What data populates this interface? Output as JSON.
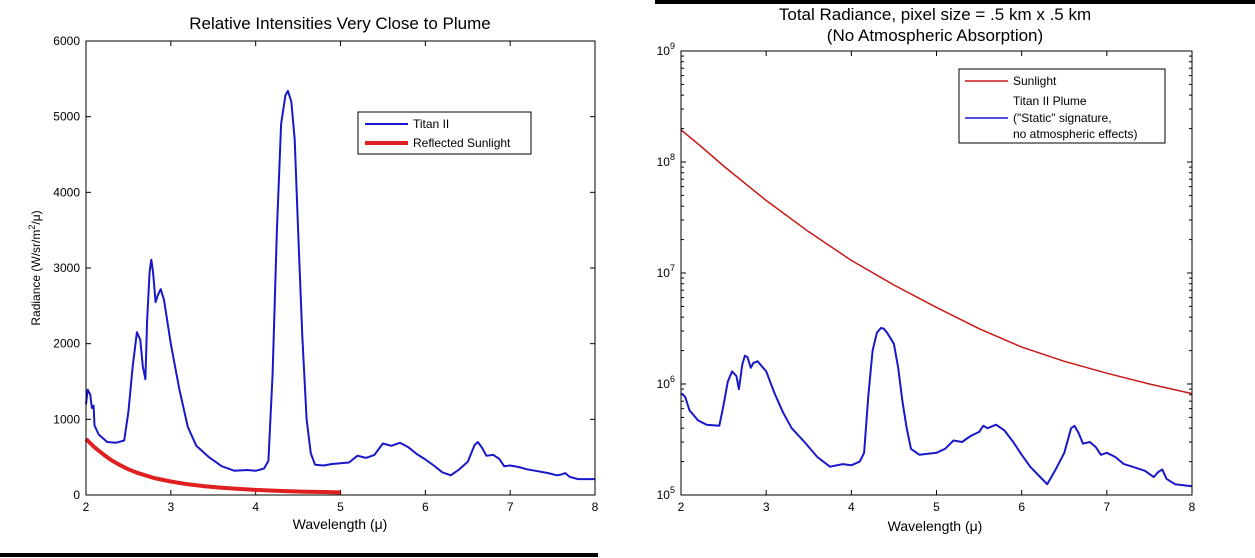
{
  "chart_data": [
    {
      "type": "line",
      "title": "Relative Intensities Very Close to Plume",
      "xlabel": "Wavelength (μ)",
      "ylabel_parts": [
        "Radiance (W/sr/m",
        "2",
        "/μ)"
      ],
      "xlim": [
        2,
        8
      ],
      "ylim": [
        0,
        6000
      ],
      "yscale": "linear",
      "xticks": [
        2,
        3,
        4,
        5,
        6,
        7,
        8
      ],
      "yticks": [
        0,
        1000,
        2000,
        3000,
        4000,
        5000,
        6000
      ],
      "ytick_labels": [
        "0",
        "1000",
        "2000",
        "3000",
        "4000",
        "5000",
        "6000"
      ],
      "grid": false,
      "legend_position": "upper-right",
      "series": [
        {
          "name": "Titan II",
          "color": "#1818c8",
          "points": [
            [
              2.0,
              1200
            ],
            [
              2.02,
              1390
            ],
            [
              2.05,
              1330
            ],
            [
              2.07,
              1150
            ],
            [
              2.09,
              1180
            ],
            [
              2.1,
              920
            ],
            [
              2.15,
              800
            ],
            [
              2.25,
              700
            ],
            [
              2.35,
              690
            ],
            [
              2.45,
              720
            ],
            [
              2.5,
              1100
            ],
            [
              2.55,
              1700
            ],
            [
              2.6,
              2150
            ],
            [
              2.64,
              2050
            ],
            [
              2.67,
              1700
            ],
            [
              2.7,
              1530
            ],
            [
              2.72,
              2300
            ],
            [
              2.75,
              2950
            ],
            [
              2.77,
              3110
            ],
            [
              2.79,
              2950
            ],
            [
              2.82,
              2550
            ],
            [
              2.85,
              2650
            ],
            [
              2.88,
              2720
            ],
            [
              2.92,
              2580
            ],
            [
              3.0,
              2000
            ],
            [
              3.1,
              1400
            ],
            [
              3.2,
              900
            ],
            [
              3.3,
              650
            ],
            [
              3.45,
              500
            ],
            [
              3.6,
              380
            ],
            [
              3.75,
              320
            ],
            [
              3.9,
              330
            ],
            [
              4.0,
              320
            ],
            [
              4.1,
              350
            ],
            [
              4.15,
              450
            ],
            [
              4.2,
              1600
            ],
            [
              4.25,
              3500
            ],
            [
              4.3,
              4900
            ],
            [
              4.35,
              5280
            ],
            [
              4.38,
              5340
            ],
            [
              4.42,
              5200
            ],
            [
              4.46,
              4700
            ],
            [
              4.5,
              3500
            ],
            [
              4.55,
              2100
            ],
            [
              4.6,
              1000
            ],
            [
              4.65,
              550
            ],
            [
              4.7,
              400
            ],
            [
              4.8,
              390
            ],
            [
              4.9,
              410
            ],
            [
              5.0,
              420
            ],
            [
              5.1,
              430
            ],
            [
              5.2,
              520
            ],
            [
              5.3,
              490
            ],
            [
              5.4,
              530
            ],
            [
              5.5,
              680
            ],
            [
              5.6,
              650
            ],
            [
              5.7,
              690
            ],
            [
              5.8,
              630
            ],
            [
              5.9,
              540
            ],
            [
              6.0,
              470
            ],
            [
              6.1,
              390
            ],
            [
              6.2,
              300
            ],
            [
              6.3,
              260
            ],
            [
              6.4,
              340
            ],
            [
              6.5,
              440
            ],
            [
              6.58,
              660
            ],
            [
              6.62,
              700
            ],
            [
              6.67,
              620
            ],
            [
              6.72,
              520
            ],
            [
              6.8,
              530
            ],
            [
              6.87,
              480
            ],
            [
              6.93,
              380
            ],
            [
              7.0,
              390
            ],
            [
              7.1,
              370
            ],
            [
              7.2,
              340
            ],
            [
              7.3,
              320
            ],
            [
              7.45,
              290
            ],
            [
              7.55,
              260
            ],
            [
              7.6,
              270
            ],
            [
              7.65,
              290
            ],
            [
              7.7,
              240
            ],
            [
              7.8,
              210
            ],
            [
              8.0,
              210
            ]
          ]
        },
        {
          "name": "Reflected Sunlight",
          "color": "#e02020",
          "points": [
            [
              2.0,
              740
            ],
            [
              2.1,
              630
            ],
            [
              2.2,
              540
            ],
            [
              2.3,
              460
            ],
            [
              2.4,
              395
            ],
            [
              2.5,
              340
            ],
            [
              2.6,
              295
            ],
            [
              2.8,
              225
            ],
            [
              3.0,
              178
            ],
            [
              3.2,
              142
            ],
            [
              3.4,
              116
            ],
            [
              3.6,
              96
            ],
            [
              3.8,
              80
            ],
            [
              4.0,
              68
            ],
            [
              4.2,
              58
            ],
            [
              4.4,
              50
            ],
            [
              4.6,
              44
            ],
            [
              4.8,
              39
            ],
            [
              5.0,
              35
            ]
          ]
        }
      ]
    },
    {
      "type": "line",
      "title_lines": [
        "Total Radiance, pixel size = .5 km x .5 km",
        "(No Atmospheric Absorption)"
      ],
      "xlabel": "Wavelength (μ)",
      "xlim": [
        2,
        8
      ],
      "ylim": [
        100000,
        1000000000
      ],
      "yscale": "log",
      "xticks": [
        2,
        3,
        4,
        5,
        6,
        7,
        8
      ],
      "yticks": [
        100000,
        1000000,
        10000000,
        100000000,
        1000000000
      ],
      "ytick_bases": [
        "10",
        "10",
        "10",
        "10",
        "10"
      ],
      "ytick_exponents": [
        "5",
        "6",
        "7",
        "8",
        "9"
      ],
      "grid": false,
      "legend_position": "upper-right",
      "series": [
        {
          "name": "Sunlight",
          "color": "#c81818",
          "points": [
            [
              2.0,
              195000000
            ],
            [
              2.25,
              135000000
            ],
            [
              2.5,
              92000000
            ],
            [
              3.0,
              45000000
            ],
            [
              3.5,
              23500000
            ],
            [
              4.0,
              13000000
            ],
            [
              4.5,
              7800000
            ],
            [
              5.0,
              4900000
            ],
            [
              5.5,
              3150000
            ],
            [
              6.0,
              2150000
            ],
            [
              6.5,
              1600000
            ],
            [
              7.0,
              1250000
            ],
            [
              7.5,
              1000000
            ],
            [
              8.0,
              820000
            ]
          ]
        },
        {
          "name_lines": [
            "Titan II Plume",
            "(\"Static\" signature,",
            "no atmospheric effects)"
          ],
          "color": "#1818c8",
          "points": [
            [
              2.0,
              820000
            ],
            [
              2.02,
              810000
            ],
            [
              2.05,
              760000
            ],
            [
              2.1,
              580000
            ],
            [
              2.2,
              470000
            ],
            [
              2.3,
              430000
            ],
            [
              2.45,
              420000
            ],
            [
              2.5,
              650000
            ],
            [
              2.55,
              1050000
            ],
            [
              2.6,
              1300000
            ],
            [
              2.65,
              1180000
            ],
            [
              2.68,
              900000
            ],
            [
              2.72,
              1500000
            ],
            [
              2.75,
              1800000
            ],
            [
              2.78,
              1750000
            ],
            [
              2.82,
              1400000
            ],
            [
              2.85,
              1550000
            ],
            [
              2.9,
              1600000
            ],
            [
              3.0,
              1300000
            ],
            [
              3.1,
              820000
            ],
            [
              3.2,
              550000
            ],
            [
              3.3,
              400000
            ],
            [
              3.45,
              300000
            ],
            [
              3.6,
              220000
            ],
            [
              3.75,
              180000
            ],
            [
              3.9,
              190000
            ],
            [
              4.0,
              185000
            ],
            [
              4.1,
              200000
            ],
            [
              4.15,
              240000
            ],
            [
              4.2,
              800000
            ],
            [
              4.25,
              2000000
            ],
            [
              4.3,
              2900000
            ],
            [
              4.35,
              3200000
            ],
            [
              4.38,
              3150000
            ],
            [
              4.42,
              2900000
            ],
            [
              4.5,
              2300000
            ],
            [
              4.55,
              1400000
            ],
            [
              4.6,
              700000
            ],
            [
              4.65,
              400000
            ],
            [
              4.7,
              260000
            ],
            [
              4.8,
              230000
            ],
            [
              4.9,
              235000
            ],
            [
              5.0,
              240000
            ],
            [
              5.1,
              260000
            ],
            [
              5.2,
              310000
            ],
            [
              5.3,
              300000
            ],
            [
              5.4,
              340000
            ],
            [
              5.5,
              370000
            ],
            [
              5.55,
              420000
            ],
            [
              5.6,
              400000
            ],
            [
              5.7,
              430000
            ],
            [
              5.8,
              380000
            ],
            [
              5.9,
              300000
            ],
            [
              6.0,
              230000
            ],
            [
              6.1,
              180000
            ],
            [
              6.2,
              150000
            ],
            [
              6.3,
              125000
            ],
            [
              6.4,
              170000
            ],
            [
              6.5,
              240000
            ],
            [
              6.58,
              400000
            ],
            [
              6.62,
              420000
            ],
            [
              6.67,
              360000
            ],
            [
              6.72,
              290000
            ],
            [
              6.8,
              300000
            ],
            [
              6.87,
              270000
            ],
            [
              6.93,
              230000
            ],
            [
              7.0,
              240000
            ],
            [
              7.1,
              220000
            ],
            [
              7.2,
              190000
            ],
            [
              7.3,
              180000
            ],
            [
              7.45,
              165000
            ],
            [
              7.55,
              145000
            ],
            [
              7.6,
              160000
            ],
            [
              7.65,
              170000
            ],
            [
              7.7,
              140000
            ],
            [
              7.8,
              125000
            ],
            [
              8.0,
              120000
            ]
          ]
        }
      ]
    }
  ]
}
